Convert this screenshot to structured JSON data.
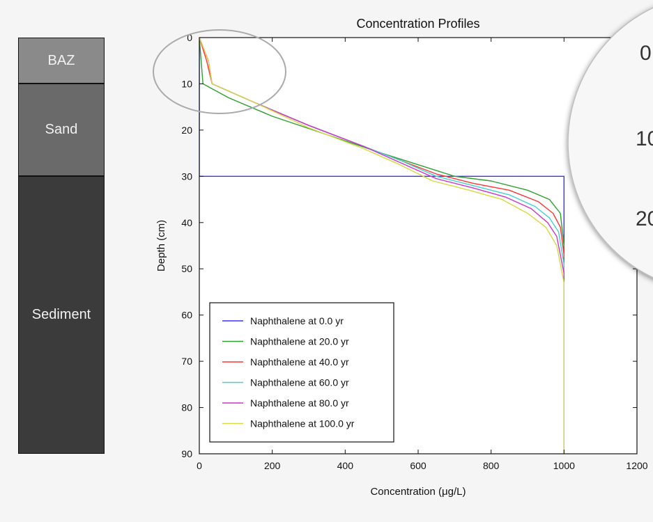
{
  "layers": [
    {
      "label": "BAZ",
      "color": "#8a8a8a",
      "top_depth": 0,
      "bottom_depth": 10
    },
    {
      "label": "Sand",
      "color": "#6a6a6a",
      "top_depth": 10,
      "bottom_depth": 30
    },
    {
      "label": "Sediment",
      "color": "#3b3b3b",
      "top_depth": 30,
      "bottom_depth": 90
    }
  ],
  "zoom_inset": {
    "tick_labels": [
      "0",
      "10",
      "20"
    ]
  },
  "chart_data": {
    "type": "line",
    "title": "Concentration Profiles",
    "xlabel": "Concentration (μg/L)",
    "ylabel": "Depth (cm)",
    "xlim": [
      0,
      1200
    ],
    "ylim": [
      0,
      90
    ],
    "y_inverted": true,
    "xticks": [
      0,
      200,
      400,
      600,
      800,
      1000,
      1200
    ],
    "yticks": [
      0,
      10,
      20,
      30,
      40,
      50,
      60,
      70,
      80,
      90
    ],
    "grid": false,
    "legend_position": "lower-left",
    "series": [
      {
        "name": "Naphthalene at 0.0 yr",
        "color": "#3333ff",
        "points": [
          [
            0,
            0
          ],
          [
            0,
            30
          ],
          [
            1000,
            30
          ],
          [
            1000,
            90
          ]
        ]
      },
      {
        "name": "Naphthalene at 20.0 yr",
        "color": "#2ca02c",
        "points": [
          [
            0,
            0
          ],
          [
            5,
            5
          ],
          [
            10,
            10
          ],
          [
            80,
            13
          ],
          [
            200,
            17
          ],
          [
            350,
            21
          ],
          [
            500,
            25
          ],
          [
            600,
            27.5
          ],
          [
            700,
            30
          ],
          [
            800,
            31
          ],
          [
            900,
            33
          ],
          [
            960,
            35
          ],
          [
            990,
            38
          ],
          [
            1000,
            45
          ],
          [
            1000,
            90
          ]
        ]
      },
      {
        "name": "Naphthalene at 40.0 yr",
        "color": "#ff3333",
        "points": [
          [
            0,
            0
          ],
          [
            20,
            5
          ],
          [
            35,
            10
          ],
          [
            150,
            14
          ],
          [
            300,
            19
          ],
          [
            450,
            23.5
          ],
          [
            550,
            26.5
          ],
          [
            650,
            29.5
          ],
          [
            750,
            31.5
          ],
          [
            850,
            33
          ],
          [
            930,
            35.5
          ],
          [
            970,
            38
          ],
          [
            990,
            41
          ],
          [
            1000,
            47
          ],
          [
            1000,
            90
          ]
        ]
      },
      {
        "name": "Naphthalene at 60.0 yr",
        "color": "#40d0d0",
        "points": [
          [
            0,
            0
          ],
          [
            25,
            5
          ],
          [
            35,
            10
          ],
          [
            150,
            14
          ],
          [
            300,
            19
          ],
          [
            450,
            23.5
          ],
          [
            550,
            26.5
          ],
          [
            650,
            30
          ],
          [
            750,
            32
          ],
          [
            850,
            34
          ],
          [
            920,
            36.5
          ],
          [
            960,
            39
          ],
          [
            985,
            42
          ],
          [
            1000,
            49
          ],
          [
            1000,
            90
          ]
        ]
      },
      {
        "name": "Naphthalene at 80.0 yr",
        "color": "#cc33cc",
        "points": [
          [
            0,
            0
          ],
          [
            25,
            5
          ],
          [
            35,
            10
          ],
          [
            150,
            14
          ],
          [
            300,
            19
          ],
          [
            450,
            23.5
          ],
          [
            550,
            27
          ],
          [
            650,
            30.5
          ],
          [
            750,
            32.5
          ],
          [
            840,
            34.5
          ],
          [
            910,
            37
          ],
          [
            955,
            40
          ],
          [
            980,
            43
          ],
          [
            1000,
            51
          ],
          [
            1000,
            90
          ]
        ]
      },
      {
        "name": "Naphthalene at 100.0 yr",
        "color": "#d8d840",
        "points": [
          [
            0,
            0
          ],
          [
            25,
            5
          ],
          [
            35,
            10
          ],
          [
            150,
            14
          ],
          [
            300,
            19.5
          ],
          [
            450,
            24
          ],
          [
            550,
            27.5
          ],
          [
            640,
            31
          ],
          [
            740,
            33
          ],
          [
            830,
            35
          ],
          [
            900,
            38
          ],
          [
            950,
            41
          ],
          [
            980,
            45
          ],
          [
            1000,
            53
          ],
          [
            1000,
            90
          ]
        ]
      }
    ]
  }
}
